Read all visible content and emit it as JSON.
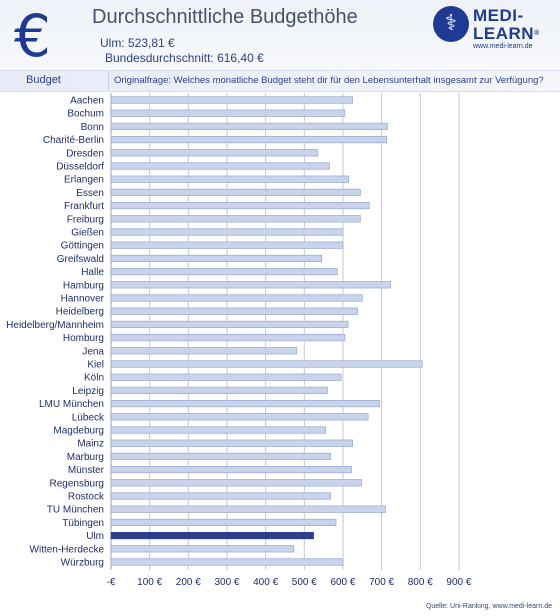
{
  "header": {
    "title": "Durchschnittliche Budgethöhe",
    "ulm_line": "Ulm: 523,81 €",
    "average_line": "Bundesdurchschnitt: 616,40 €",
    "euro_symbol": "€"
  },
  "logo": {
    "icon": "caduceus-icon",
    "line1": "MEDI-",
    "line2": "LEARN",
    "trademark": "®",
    "url": "www.medi-learn.de"
  },
  "band": {
    "label": "Budget",
    "question": "Originalfrage: Welches monatliche Budget steht dir für den Lebensunterhalt insgesamt zur Verfügung?"
  },
  "source": "Quelle: Uni-Ranking, www.medi-learn.de",
  "colors": {
    "bar": "#c8d4ec",
    "bar_edge": "#8c9cc6",
    "highlight": "#2e3c8e",
    "grid": "#c0c8dc"
  },
  "chart_data": {
    "type": "bar",
    "orientation": "horizontal",
    "categories": [
      "Aachen",
      "Bochum",
      "Bonn",
      "Charité-Berlin",
      "Dresden",
      "Düsseldorf",
      "Erlangen",
      "Essen",
      "Frankfurt",
      "Freiburg",
      "Gießen",
      "Göttingen",
      "Greifswald",
      "Halle",
      "Hamburg",
      "Hannover",
      "Heidelberg",
      "Heidelberg/Mannheim",
      "Homburg",
      "Jena",
      "Kiel",
      "Köln",
      "Leipzig",
      "LMU München",
      "Lübeck",
      "Magdeburg",
      "Mainz",
      "Marburg",
      "Münster",
      "Regensburg",
      "Rostock",
      "TU München",
      "Tübingen",
      "Ulm",
      "Witten-Herdecke",
      "Würzburg"
    ],
    "values": [
      625,
      605,
      715,
      713,
      535,
      565,
      615,
      645,
      668,
      645,
      600,
      600,
      545,
      585,
      723,
      650,
      638,
      613,
      605,
      480,
      805,
      595,
      560,
      695,
      665,
      555,
      625,
      568,
      622,
      648,
      568,
      710,
      582,
      524,
      473,
      600
    ],
    "highlight_category": "Ulm",
    "xlim": [
      0,
      900
    ],
    "ticks": [
      0,
      100,
      200,
      300,
      400,
      500,
      600,
      700,
      800,
      900
    ],
    "tick_labels": [
      "-€",
      "100 €",
      "200 €",
      "300 €",
      "400 €",
      "500 €",
      "600 €",
      "700 €",
      "800 €",
      "900 €"
    ],
    "grid": true
  }
}
